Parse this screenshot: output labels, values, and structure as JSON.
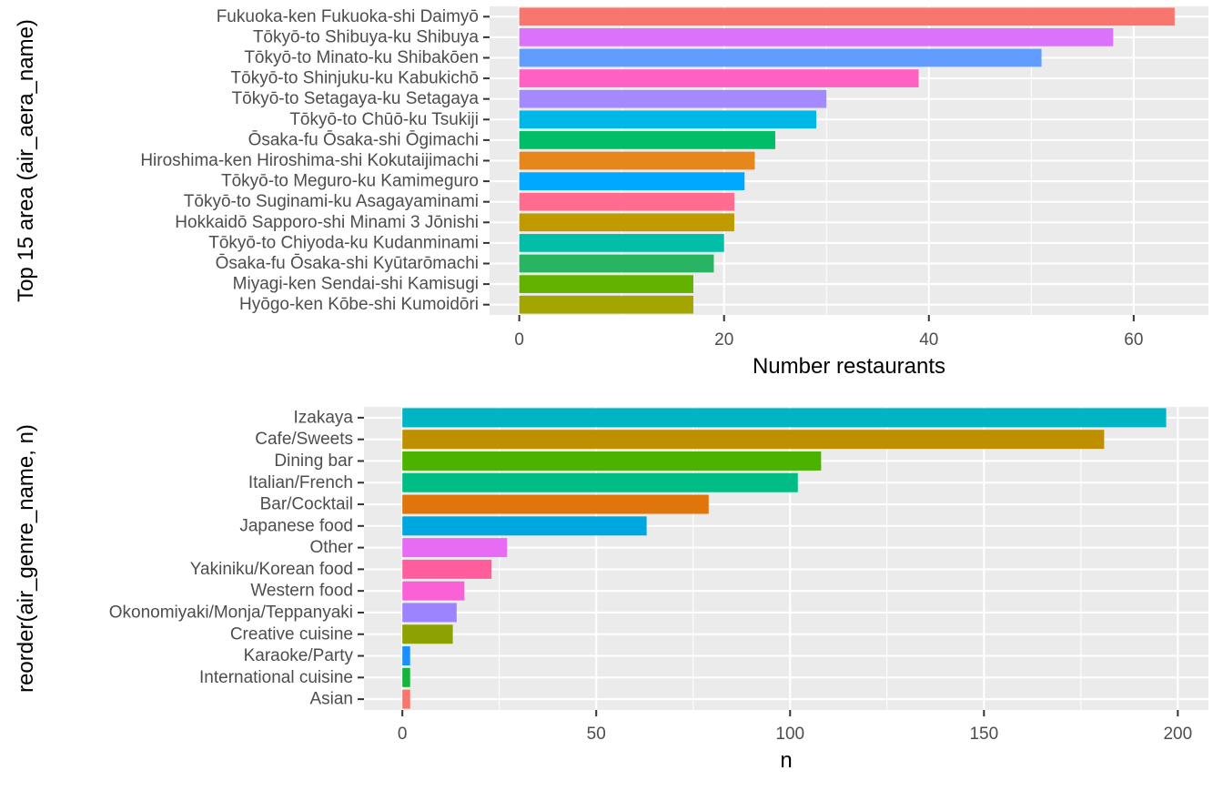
{
  "chart_data": [
    {
      "type": "bar",
      "orientation": "horizontal",
      "title": "",
      "xlabel": "Number restaurants",
      "ylabel": "Top 15 area (air_aera_name)",
      "xlim": [
        -2.9,
        67.3
      ],
      "x_ticks": [
        0,
        20,
        40,
        60
      ],
      "grid": true,
      "legend": "none",
      "categories": [
        "Fukuoka-ken Fukuoka-shi Daimyō",
        "Tōkyō-to Shibuya-ku Shibuya",
        "Tōkyō-to Minato-ku Shibakōen",
        "Tōkyō-to Shinjuku-ku Kabukichō",
        "Tōkyō-to Setagaya-ku Setagaya",
        "Tōkyō-to Chūō-ku Tsukiji",
        "Ōsaka-fu Ōsaka-shi Ōgimachi",
        "Hiroshima-ken Hiroshima-shi Kokutaijimachi",
        "Tōkyō-to Meguro-ku Kamimeguro",
        "Tōkyō-to Suginami-ku Asagayaminami",
        "Hokkaidō Sapporo-shi Minami 3 Jōnishi",
        "Tōkyō-to Chiyoda-ku Kudanminami",
        "Ōsaka-fu Ōsaka-shi Kyūtarōmachi",
        "Miyagi-ken Sendai-shi Kamisugi",
        "Hyōgo-ken Kōbe-shi Kumoidōri"
      ],
      "values": [
        64,
        58,
        51,
        39,
        30,
        29,
        25,
        23,
        22,
        21,
        21,
        20,
        19,
        17,
        17
      ],
      "colors": [
        "#F8766D",
        "#DB72FB",
        "#619CFF",
        "#FF61C3",
        "#A58AFF",
        "#00B8E7",
        "#00BE67",
        "#E7861B",
        "#00A9FF",
        "#FF6C90",
        "#C09B00",
        "#00BFA6",
        "#28B463",
        "#64B200",
        "#A3A500"
      ]
    },
    {
      "type": "bar",
      "orientation": "horizontal",
      "title": "",
      "xlabel": "n",
      "ylabel": "reorder(air_genre_name, n)",
      "xlim": [
        -9.9,
        207.9
      ],
      "x_ticks": [
        0,
        50,
        100,
        150,
        200
      ],
      "grid": true,
      "legend": "none",
      "categories": [
        "Izakaya",
        "Cafe/Sweets",
        "Dining bar",
        "Italian/French",
        "Bar/Cocktail",
        "Japanese food",
        "Other",
        "Yakiniku/Korean food",
        "Western food",
        "Okonomiyaki/Monja/Teppanyaki",
        "Creative cuisine",
        "Karaoke/Party",
        "International cuisine",
        "Asian"
      ],
      "values": [
        197,
        181,
        108,
        102,
        79,
        63,
        27,
        23,
        16,
        14,
        13,
        2,
        2,
        2
      ],
      "colors": [
        "#00B4C4",
        "#BE9000",
        "#4BB200",
        "#00BD85",
        "#E0760B",
        "#00A6E0",
        "#E76BF3",
        "#FF5D9B",
        "#FB61D7",
        "#9D83FF",
        "#8DA100",
        "#1A8FFF",
        "#14B53C",
        "#F8766D"
      ]
    }
  ]
}
